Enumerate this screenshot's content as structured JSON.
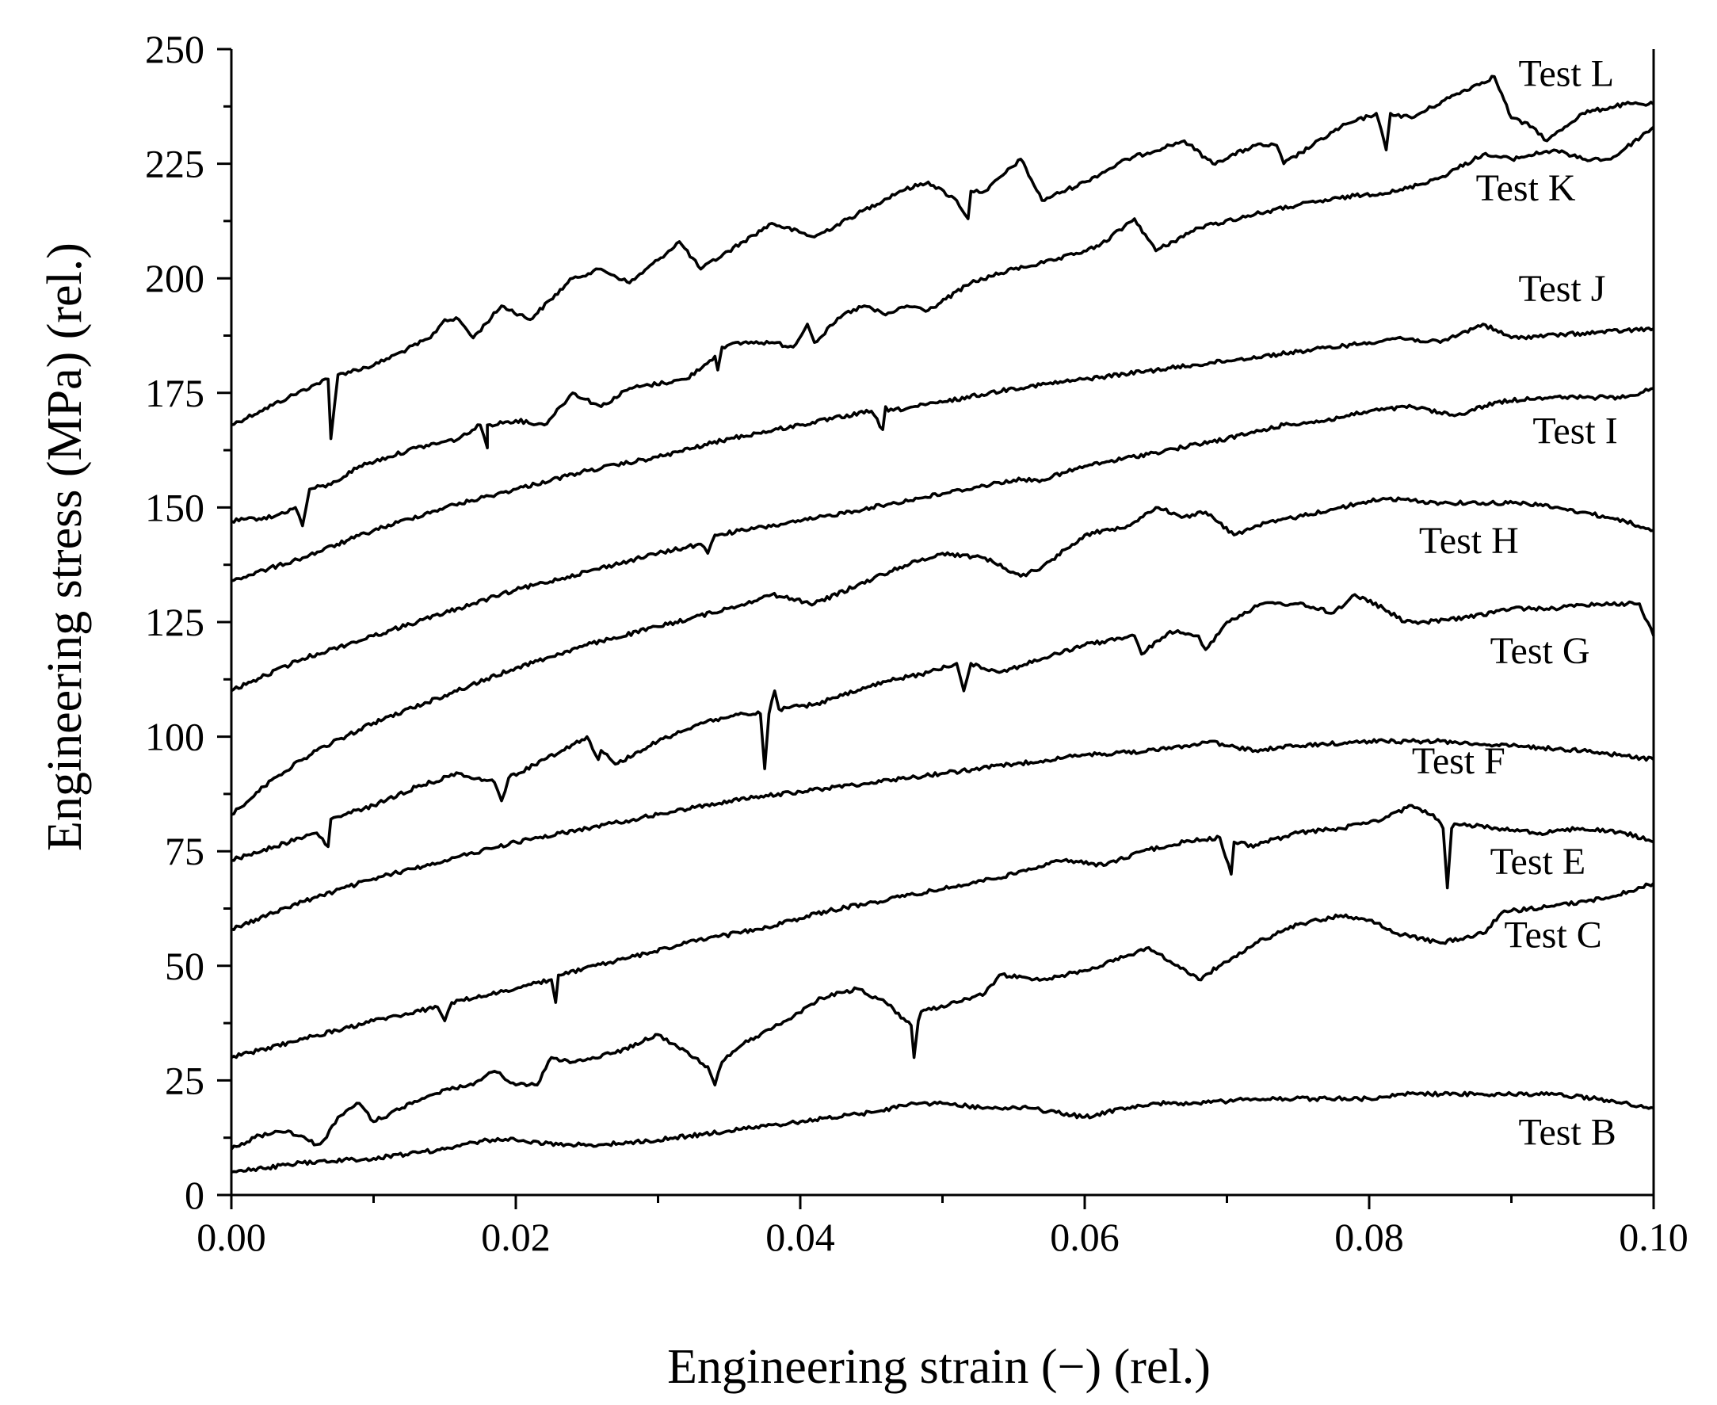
{
  "chart_data": {
    "type": "line",
    "title": "",
    "xlabel": "Engineering strain (−) (rel.)",
    "ylabel": "Engineering stress (MPa) (rel.)",
    "xlim": [
      0.0,
      0.1
    ],
    "ylim": [
      0,
      250
    ],
    "x_ticks": [
      0.0,
      0.02,
      0.04,
      0.06,
      0.08,
      0.1
    ],
    "x_tick_labels": [
      "0.00",
      "0.02",
      "0.04",
      "0.06",
      "0.08",
      "0.10"
    ],
    "y_ticks": [
      0,
      25,
      50,
      75,
      100,
      125,
      150,
      175,
      200,
      225,
      250
    ],
    "y_tick_labels": [
      "0",
      "25",
      "50",
      "75",
      "100",
      "125",
      "150",
      "175",
      "200",
      "225",
      "250"
    ],
    "grid": false,
    "legend": "inline labels at right end of each curve",
    "series": [
      {
        "name": "Test L",
        "label_pos": [
          0.0905,
          242
        ],
        "x": [
          0.0,
          0.002,
          0.004,
          0.006,
          0.0068,
          0.007,
          0.0075,
          0.01,
          0.012,
          0.014,
          0.015,
          0.016,
          0.017,
          0.019,
          0.021,
          0.024,
          0.026,
          0.028,
          0.03,
          0.0315,
          0.033,
          0.036,
          0.038,
          0.041,
          0.044,
          0.047,
          0.049,
          0.051,
          0.0518,
          0.052,
          0.053,
          0.0555,
          0.057,
          0.06,
          0.063,
          0.066,
          0.067,
          0.069,
          0.072,
          0.0735,
          0.074,
          0.078,
          0.0805,
          0.0812,
          0.0815,
          0.083,
          0.086,
          0.0888,
          0.09,
          0.0915,
          0.0925,
          0.095,
          0.098,
          0.1
        ],
        "y": [
          168,
          171,
          174,
          177,
          178,
          165,
          179,
          181,
          184,
          187,
          191,
          191,
          187,
          194,
          191,
          200,
          202,
          199,
          204,
          208,
          202,
          208,
          212,
          209,
          214,
          219,
          221,
          217,
          213,
          219,
          219,
          226,
          217,
          221,
          226,
          229,
          230,
          225,
          229,
          229,
          225,
          233,
          236,
          228,
          236,
          235,
          240,
          244,
          235,
          233,
          230,
          236,
          238,
          238
        ]
      },
      {
        "name": "Test K",
        "label_pos": [
          0.0875,
          217
        ],
        "x": [
          0.0,
          0.003,
          0.0045,
          0.005,
          0.0055,
          0.007,
          0.009,
          0.011,
          0.013,
          0.016,
          0.0175,
          0.018,
          0.018,
          0.02,
          0.022,
          0.024,
          0.026,
          0.028,
          0.032,
          0.034,
          0.0342,
          0.0345,
          0.036,
          0.038,
          0.0395,
          0.0405,
          0.041,
          0.043,
          0.0445,
          0.046,
          0.0475,
          0.049,
          0.052,
          0.055,
          0.058,
          0.061,
          0.0635,
          0.065,
          0.068,
          0.072,
          0.075,
          0.079,
          0.082,
          0.085,
          0.088,
          0.09,
          0.093,
          0.095,
          0.097,
          0.1
        ],
        "y": [
          147,
          148,
          150,
          146,
          154,
          155,
          159,
          161,
          163,
          165,
          168,
          163,
          168,
          169,
          168,
          175,
          172,
          176,
          178,
          183,
          180,
          185,
          186,
          186,
          185,
          190,
          186,
          192,
          194,
          192,
          194,
          193,
          199,
          202,
          204,
          207,
          213,
          206,
          211,
          214,
          216,
          218,
          219,
          222,
          227,
          226,
          228,
          226,
          226,
          233
        ]
      },
      {
        "name": "Test J",
        "label_pos": [
          0.0905,
          195
        ],
        "x": [
          0.0,
          0.005,
          0.01,
          0.015,
          0.02,
          0.025,
          0.03,
          0.035,
          0.04,
          0.045,
          0.0458,
          0.046,
          0.0462,
          0.05,
          0.055,
          0.06,
          0.065,
          0.07,
          0.075,
          0.08,
          0.082,
          0.085,
          0.088,
          0.09,
          0.095,
          0.1
        ],
        "y": [
          134,
          139,
          145,
          150,
          154,
          158,
          161,
          165,
          168,
          171,
          167,
          172,
          171,
          173,
          176,
          178,
          180,
          182,
          184,
          186,
          187,
          186,
          190,
          187,
          188,
          189
        ]
      },
      {
        "name": "Test I",
        "label_pos": [
          0.0915,
          164
        ],
        "x": [
          0.0,
          0.005,
          0.01,
          0.015,
          0.02,
          0.025,
          0.03,
          0.033,
          0.0335,
          0.034,
          0.04,
          0.045,
          0.05,
          0.055,
          0.057,
          0.06,
          0.065,
          0.07,
          0.074,
          0.077,
          0.08,
          0.083,
          0.086,
          0.089,
          0.092,
          0.095,
          0.098,
          0.1
        ],
        "y": [
          110,
          117,
          122,
          127,
          132,
          136,
          140,
          142,
          140,
          144,
          147,
          150,
          153,
          156,
          156,
          159,
          162,
          165,
          168,
          169,
          171,
          172,
          170,
          173,
          174,
          174,
          174,
          176
        ]
      },
      {
        "name": "Test H",
        "label_pos": [
          0.0835,
          140
        ],
        "x": [
          0.0,
          0.003,
          0.006,
          0.01,
          0.015,
          0.02,
          0.025,
          0.03,
          0.035,
          0.038,
          0.041,
          0.044,
          0.047,
          0.05,
          0.053,
          0.0555,
          0.057,
          0.06,
          0.063,
          0.065,
          0.067,
          0.0685,
          0.0705,
          0.072,
          0.075,
          0.078,
          0.081,
          0.085,
          0.088,
          0.091,
          0.095,
          0.098,
          0.1
        ],
        "y": [
          83,
          91,
          97,
          103,
          109,
          115,
          120,
          124,
          128,
          131,
          129,
          133,
          137,
          140,
          139,
          135,
          137,
          144,
          146,
          150,
          148,
          149,
          144,
          146,
          148,
          150,
          152,
          151,
          151,
          151,
          149,
          147,
          145
        ]
      },
      {
        "name": "Test G",
        "label_pos": [
          0.0885,
          116
        ],
        "x": [
          0.0,
          0.003,
          0.006,
          0.0068,
          0.007,
          0.01,
          0.013,
          0.016,
          0.0185,
          0.019,
          0.0195,
          0.022,
          0.025,
          0.0258,
          0.026,
          0.027,
          0.03,
          0.033,
          0.036,
          0.0372,
          0.0375,
          0.0378,
          0.0382,
          0.0385,
          0.041,
          0.043,
          0.046,
          0.049,
          0.051,
          0.0515,
          0.052,
          0.054,
          0.057,
          0.06,
          0.0635,
          0.064,
          0.066,
          0.068,
          0.0685,
          0.07,
          0.0725,
          0.075,
          0.0775,
          0.079,
          0.081,
          0.0825,
          0.084,
          0.087,
          0.09,
          0.093,
          0.096,
          0.099,
          0.1
        ],
        "y": [
          73,
          76,
          79,
          76,
          82,
          85,
          89,
          92,
          90,
          86,
          91,
          95,
          100,
          95,
          97,
          94,
          99,
          103,
          105,
          105,
          93,
          105,
          110,
          106,
          107,
          109,
          112,
          114,
          116,
          110,
          116,
          114,
          117,
          120,
          122,
          118,
          123,
          122,
          119,
          125,
          129,
          129,
          127,
          131,
          128,
          125,
          125,
          126,
          128,
          128,
          129,
          129,
          122
        ]
      },
      {
        "name": "Test F",
        "label_pos": [
          0.083,
          92
        ],
        "x": [
          0.0,
          0.005,
          0.01,
          0.015,
          0.02,
          0.025,
          0.03,
          0.035,
          0.04,
          0.045,
          0.05,
          0.055,
          0.06,
          0.065,
          0.067,
          0.0688,
          0.07,
          0.072,
          0.075,
          0.08,
          0.085,
          0.09,
          0.095,
          0.1
        ],
        "y": [
          58,
          64,
          69,
          73,
          77,
          80,
          83,
          86,
          88,
          90,
          92,
          94,
          96,
          97,
          98,
          99,
          98,
          97,
          98,
          99,
          99,
          98,
          97,
          95
        ]
      },
      {
        "name": "Test E",
        "label_pos": [
          0.0885,
          70
        ],
        "x": [
          0.0,
          0.005,
          0.01,
          0.0145,
          0.015,
          0.0155,
          0.02,
          0.0225,
          0.0228,
          0.023,
          0.027,
          0.032,
          0.037,
          0.042,
          0.047,
          0.052,
          0.055,
          0.058,
          0.0615,
          0.064,
          0.067,
          0.0695,
          0.0703,
          0.0705,
          0.071,
          0.0715,
          0.075,
          0.078,
          0.081,
          0.083,
          0.0845,
          0.0852,
          0.0855,
          0.0858,
          0.086,
          0.089,
          0.092,
          0.095,
          0.098,
          0.1
        ],
        "y": [
          30,
          34,
          38,
          41,
          38,
          42,
          45,
          47,
          42,
          48,
          51,
          55,
          58,
          62,
          65,
          68,
          70,
          73,
          72,
          75,
          77,
          78,
          70,
          77,
          77,
          76,
          79,
          80,
          82,
          85,
          83,
          80,
          67,
          80,
          81,
          80,
          79,
          80,
          79,
          77
        ]
      },
      {
        "name": "Test C",
        "label_pos": [
          0.0895,
          54
        ],
        "x": [
          0.0,
          0.002,
          0.004,
          0.006,
          0.0065,
          0.0075,
          0.009,
          0.01,
          0.012,
          0.015,
          0.017,
          0.0185,
          0.02,
          0.0215,
          0.0225,
          0.024,
          0.027,
          0.03,
          0.031,
          0.0335,
          0.034,
          0.0345,
          0.036,
          0.039,
          0.0415,
          0.044,
          0.046,
          0.0478,
          0.048,
          0.0483,
          0.0485,
          0.051,
          0.053,
          0.054,
          0.057,
          0.06,
          0.062,
          0.0645,
          0.066,
          0.068,
          0.0705,
          0.072,
          0.075,
          0.078,
          0.08,
          0.082,
          0.085,
          0.088,
          0.0895,
          0.09,
          0.093,
          0.097,
          0.1
        ],
        "y": [
          10,
          13,
          14,
          11,
          12,
          17,
          20,
          16,
          19,
          23,
          24,
          27,
          24,
          24,
          30,
          29,
          31,
          35,
          33,
          28,
          24,
          29,
          33,
          38,
          43,
          45,
          42,
          37,
          30,
          38,
          40,
          42,
          44,
          48,
          47,
          49,
          51,
          54,
          51,
          47,
          52,
          55,
          59,
          61,
          60,
          57,
          55,
          57,
          62,
          62,
          63,
          65,
          68
        ]
      },
      {
        "name": "Test B",
        "label_pos": [
          0.0905,
          11
        ],
        "x": [
          0.0,
          0.005,
          0.01,
          0.015,
          0.018,
          0.02,
          0.023,
          0.026,
          0.03,
          0.035,
          0.04,
          0.045,
          0.048,
          0.05,
          0.053,
          0.056,
          0.058,
          0.06,
          0.063,
          0.065,
          0.068,
          0.072,
          0.076,
          0.08,
          0.082,
          0.085,
          0.09,
          0.093,
          0.096,
          0.1
        ],
        "y": [
          5,
          7,
          8,
          10,
          12,
          12,
          11,
          11,
          12,
          14,
          16,
          18,
          20,
          20,
          19,
          19,
          18,
          17,
          19,
          20,
          20,
          21,
          21,
          21,
          22,
          22,
          22,
          22,
          21,
          19
        ]
      }
    ]
  }
}
